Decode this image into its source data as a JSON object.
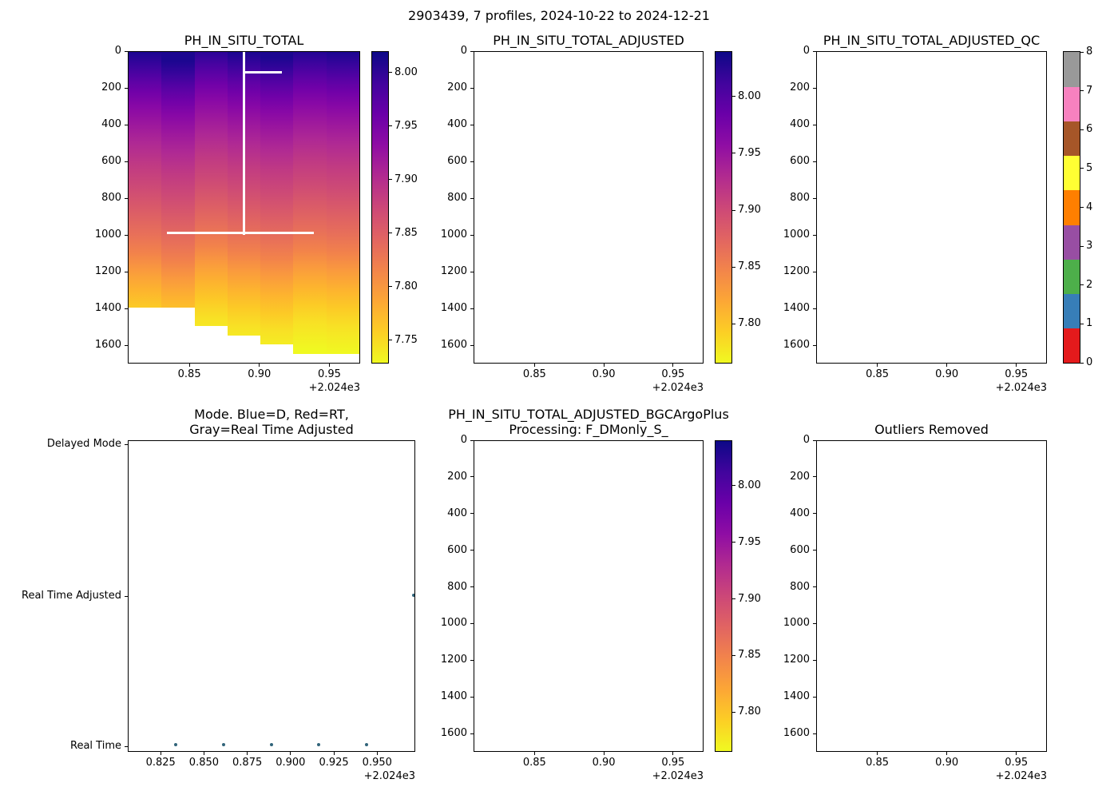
{
  "figure": {
    "title": "2903439, 7 profiles, 2024-10-22 to 2024-12-21"
  },
  "chart_data": {
    "type": "heatmap",
    "figure_title": "2903439, 7 profiles, 2024-10-22 to 2024-12-21",
    "platform_id": "2903439",
    "n_profiles": 7,
    "date_range": [
      "2024-10-22",
      "2024-12-21"
    ],
    "x_offset_label": "+2.024e3",
    "colormap": "plasma_r",
    "colormap_stops": [
      "#0d0887",
      "#41049d",
      "#6a00a8",
      "#8f0da4",
      "#b12a90",
      "#cc4778",
      "#e16462",
      "#f2844b",
      "#fca636",
      "#fcce25",
      "#f0f921"
    ],
    "panels": [
      {
        "id": "ph_in_situ_total",
        "type": "heatmap",
        "title_lines": [
          "PH_IN_SITU_TOTAL"
        ],
        "xlim": [
          2024.806,
          2024.972
        ],
        "ylim": [
          0,
          1700
        ],
        "xtick_values": [
          2024.85,
          2024.9,
          2024.95
        ],
        "xtick_labels": [
          "0.85",
          "0.90",
          "0.95"
        ],
        "ytick_values": [
          0,
          200,
          400,
          600,
          800,
          1000,
          1200,
          1400,
          1600
        ],
        "ytick_labels": [
          "0",
          "200",
          "400",
          "600",
          "800",
          "1000",
          "1200",
          "1400",
          "1600"
        ],
        "x_offset_label": "+2.024e3",
        "ylabel_meaning": "pressure_dbar",
        "colorbar": {
          "kind": "continuous",
          "vmin": 7.728,
          "vmax": 8.02,
          "tick_values": [
            8.0,
            7.95,
            7.9,
            7.85,
            7.8,
            7.75
          ],
          "tick_labels": [
            "8.00",
            "7.95",
            "7.90",
            "7.85",
            "7.80",
            "7.75"
          ]
        },
        "profiles_x": [
          2024.806,
          2024.8335,
          2024.861,
          2024.889,
          2024.9165,
          2024.944,
          2024.9715
        ],
        "profiles_max_depth": [
          1400,
          1400,
          1500,
          1550,
          1600,
          1650,
          1650
        ],
        "profiles_depth_shift": [
          0,
          50,
          -40,
          0,
          30,
          -20,
          0
        ],
        "depth_color_stops": [
          [
            0,
            "#1c0690"
          ],
          [
            70,
            "#38049c"
          ],
          [
            140,
            "#5502a4"
          ],
          [
            220,
            "#7101a8"
          ],
          [
            300,
            "#8808a6"
          ],
          [
            400,
            "#9d189d"
          ],
          [
            500,
            "#af2994"
          ],
          [
            620,
            "#c03a83"
          ],
          [
            750,
            "#ce4b75"
          ],
          [
            880,
            "#dc5e66"
          ],
          [
            1000,
            "#e87059"
          ],
          [
            1100,
            "#f2824b"
          ],
          [
            1200,
            "#fa9b3d"
          ],
          [
            1300,
            "#fdb32f"
          ],
          [
            1400,
            "#fcca26"
          ],
          [
            1500,
            "#f8e125"
          ],
          [
            1650,
            "#f0f921"
          ]
        ],
        "ph_vs_depth": [
          [
            0,
            8.01
          ],
          [
            100,
            7.97
          ],
          [
            200,
            7.94
          ],
          [
            400,
            7.91
          ],
          [
            600,
            7.885
          ],
          [
            800,
            7.865
          ],
          [
            1000,
            7.845
          ],
          [
            1100,
            7.825
          ],
          [
            1200,
            7.805
          ],
          [
            1300,
            7.785
          ],
          [
            1400,
            7.765
          ],
          [
            1550,
            7.745
          ],
          [
            1650,
            7.735
          ]
        ],
        "crosshair": {
          "color": "#ffffff",
          "vline_x": 2024.889,
          "vline_depths": [
            0,
            1000
          ],
          "hline_depth": 990,
          "hline_x": [
            2024.8335,
            2024.9395
          ],
          "short_hline_depth": 113,
          "short_hline_x": [
            2024.889,
            2024.9165
          ]
        }
      },
      {
        "id": "ph_in_situ_total_adjusted",
        "type": "empty",
        "title_lines": [
          "PH_IN_SITU_TOTAL_ADJUSTED"
        ],
        "xlim": [
          2024.806,
          2024.972
        ],
        "ylim": [
          0,
          1700
        ],
        "xtick_values": [
          2024.85,
          2024.9,
          2024.95
        ],
        "xtick_labels": [
          "0.85",
          "0.90",
          "0.95"
        ],
        "ytick_values": [
          0,
          200,
          400,
          600,
          800,
          1000,
          1200,
          1400,
          1600
        ],
        "ytick_labels": [
          "0",
          "200",
          "400",
          "600",
          "800",
          "1000",
          "1200",
          "1400",
          "1600"
        ],
        "x_offset_label": "+2.024e3",
        "colorbar": {
          "kind": "continuous",
          "vmin": 7.765,
          "vmax": 8.04,
          "tick_values": [
            8.0,
            7.95,
            7.9,
            7.85,
            7.8
          ],
          "tick_labels": [
            "8.00",
            "7.95",
            "7.90",
            "7.85",
            "7.80"
          ]
        }
      },
      {
        "id": "ph_in_situ_total_adjusted_qc",
        "type": "empty",
        "title_lines": [
          "PH_IN_SITU_TOTAL_ADJUSTED_QC"
        ],
        "xlim": [
          2024.806,
          2024.972
        ],
        "ylim": [
          0,
          1700
        ],
        "xtick_values": [
          2024.85,
          2024.9,
          2024.95
        ],
        "xtick_labels": [
          "0.85",
          "0.90",
          "0.95"
        ],
        "ytick_values": [
          0,
          200,
          400,
          600,
          800,
          1000,
          1200,
          1400,
          1600
        ],
        "ytick_labels": [
          "0",
          "200",
          "400",
          "600",
          "800",
          "1000",
          "1200",
          "1400",
          "1600"
        ],
        "x_offset_label": "+2.024e3",
        "colorbar": {
          "kind": "discrete",
          "colors_bottom_to_top": [
            "#e41a1c",
            "#377eb8",
            "#4daf4a",
            "#984ea3",
            "#ff7f00",
            "#ffff33",
            "#a65628",
            "#f781bf",
            "#999999"
          ],
          "tick_values": [
            0,
            1,
            2,
            3,
            4,
            5,
            6,
            7,
            8
          ],
          "tick_labels": [
            "0",
            "1",
            "2",
            "3",
            "4",
            "5",
            "6",
            "7",
            "8"
          ]
        }
      },
      {
        "id": "mode",
        "type": "scatter",
        "title_lines": [
          "Mode. Blue=D, Red=RT,",
          "Gray=Real Time Adjusted"
        ],
        "xlim": [
          2024.806,
          2024.972
        ],
        "xtick_values": [
          2024.825,
          2024.85,
          2024.875,
          2024.9,
          2024.925,
          2024.95
        ],
        "xtick_labels": [
          "0.825",
          "0.850",
          "0.875",
          "0.900",
          "0.925",
          "0.950"
        ],
        "x_offset_label": "+2.024e3",
        "categories": [
          "Delayed Mode",
          "Real Time Adjusted",
          "Real Time"
        ],
        "point_color": "#31647a",
        "point_size": 4,
        "points": [
          {
            "x": 2024.8335,
            "mode": "Real Time"
          },
          {
            "x": 2024.861,
            "mode": "Real Time"
          },
          {
            "x": 2024.889,
            "mode": "Real Time"
          },
          {
            "x": 2024.9165,
            "mode": "Real Time"
          },
          {
            "x": 2024.944,
            "mode": "Real Time"
          },
          {
            "x": 2024.9715,
            "mode": "Real Time Adjusted"
          }
        ]
      },
      {
        "id": "ph_in_situ_total_adjusted_bgcargoplus",
        "type": "empty",
        "title_lines": [
          "PH_IN_SITU_TOTAL_ADJUSTED_BGCArgoPlus",
          "Processing: F_DMonly_S_"
        ],
        "xlim": [
          2024.806,
          2024.972
        ],
        "ylim": [
          0,
          1700
        ],
        "xtick_values": [
          2024.85,
          2024.9,
          2024.95
        ],
        "xtick_labels": [
          "0.85",
          "0.90",
          "0.95"
        ],
        "ytick_values": [
          0,
          200,
          400,
          600,
          800,
          1000,
          1200,
          1400,
          1600
        ],
        "ytick_labels": [
          "0",
          "200",
          "400",
          "600",
          "800",
          "1000",
          "1200",
          "1400",
          "1600"
        ],
        "x_offset_label": "+2.024e3",
        "colorbar": {
          "kind": "continuous",
          "vmin": 7.765,
          "vmax": 8.04,
          "tick_values": [
            8.0,
            7.95,
            7.9,
            7.85,
            7.8
          ],
          "tick_labels": [
            "8.00",
            "7.95",
            "7.90",
            "7.85",
            "7.80"
          ]
        }
      },
      {
        "id": "outliers_removed",
        "type": "empty",
        "title_lines": [
          "Outliers Removed"
        ],
        "xlim": [
          2024.806,
          2024.972
        ],
        "ylim": [
          0,
          1700
        ],
        "xtick_values": [
          2024.85,
          2024.9,
          2024.95
        ],
        "xtick_labels": [
          "0.85",
          "0.90",
          "0.95"
        ],
        "ytick_values": [
          0,
          200,
          400,
          600,
          800,
          1000,
          1200,
          1400,
          1600
        ],
        "ytick_labels": [
          "0",
          "200",
          "400",
          "600",
          "800",
          "1000",
          "1200",
          "1400",
          "1600"
        ],
        "x_offset_label": "+2.024e3"
      }
    ]
  }
}
